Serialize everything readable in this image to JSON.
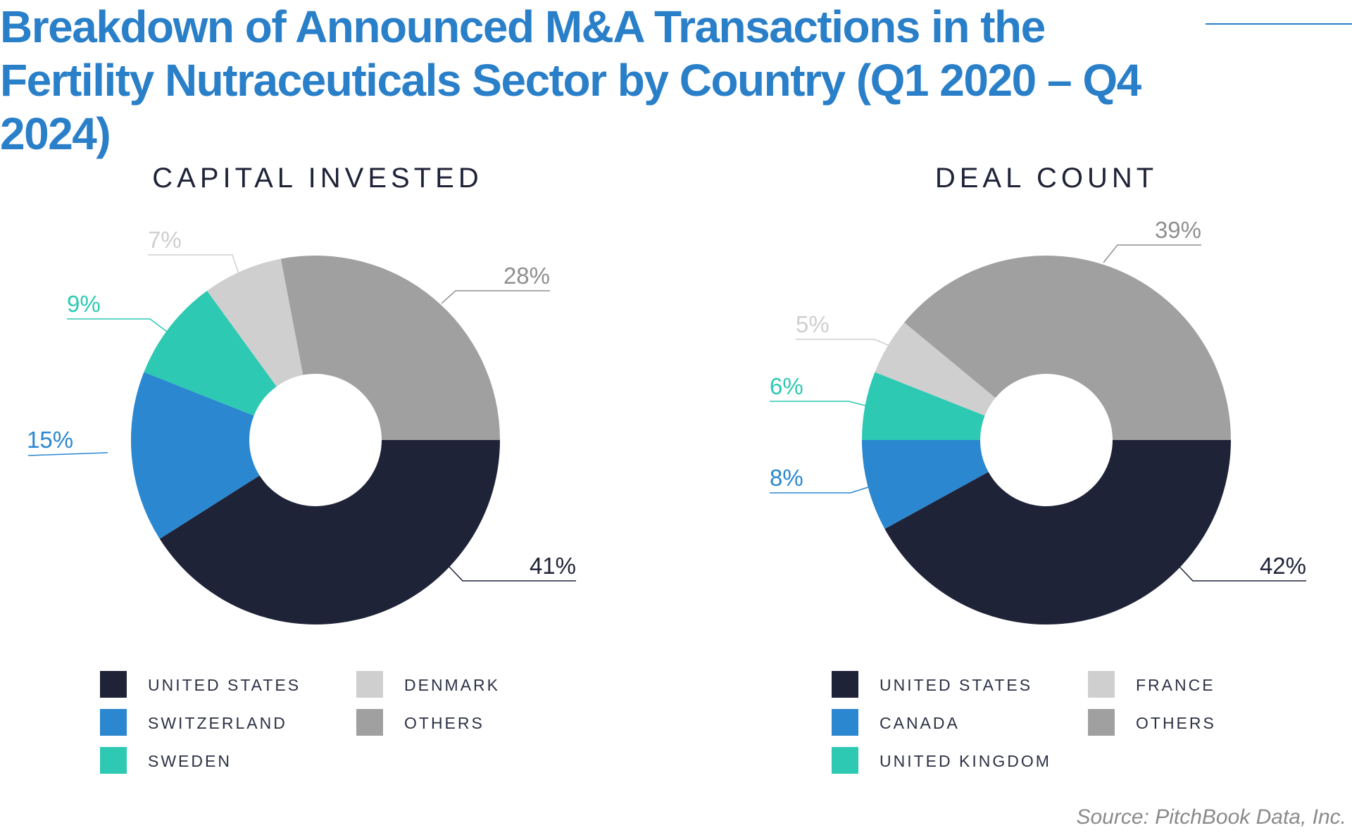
{
  "title": "Breakdown of Announced M&A Transactions in the Fertility Nutraceuticals Sector by Country (Q1 2020 – Q4 2024)",
  "source": "Source: PitchBook Data, Inc.",
  "chart_data": [
    {
      "type": "pie",
      "title": "CAPITAL INVESTED",
      "donut": true,
      "legend_position": "bottom",
      "slices": [
        {
          "label": "UNITED STATES",
          "value": 41,
          "color": "#1f2338",
          "display": "41%"
        },
        {
          "label": "SWITZERLAND",
          "value": 15,
          "color": "#2a87d0",
          "display": "15%"
        },
        {
          "label": "SWEDEN",
          "value": 9,
          "color": "#2dc9b3",
          "display": "9%"
        },
        {
          "label": "DENMARK",
          "value": 7,
          "color": "#cfcfcf",
          "display": "7%"
        },
        {
          "label": "OTHERS",
          "value": 28,
          "color": "#a0a0a0",
          "display": "28%"
        }
      ]
    },
    {
      "type": "pie",
      "title": "DEAL COUNT",
      "donut": true,
      "legend_position": "bottom",
      "slices": [
        {
          "label": "UNITED STATES",
          "value": 42,
          "color": "#1f2338",
          "display": "42%"
        },
        {
          "label": "CANADA",
          "value": 8,
          "color": "#2a87d0",
          "display": "8%"
        },
        {
          "label": "UNITED KINGDOM",
          "value": 6,
          "color": "#2dc9b3",
          "display": "6%"
        },
        {
          "label": "FRANCE",
          "value": 5,
          "color": "#cfcfcf",
          "display": "5%"
        },
        {
          "label": "OTHERS",
          "value": 39,
          "color": "#a0a0a0",
          "display": "39%"
        }
      ]
    }
  ]
}
